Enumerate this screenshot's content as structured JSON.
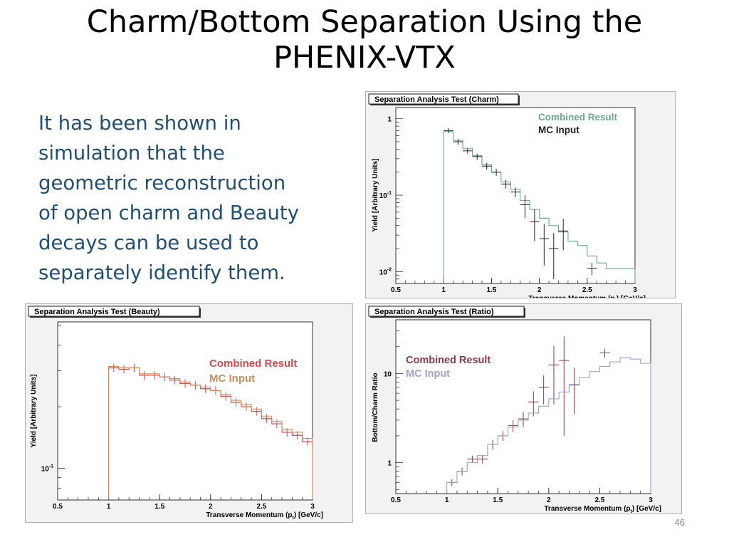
{
  "slide": {
    "title_lines": [
      "Charm/Bottom Separation Using the",
      "PHENIX-VTX"
    ],
    "bullet_lines": [
      "It has been shown in",
      "simulation that the",
      "geometric reconstruction",
      "of open charm and Beauty",
      "decays can be used to",
      "separately identify them."
    ],
    "slide_number": "46"
  },
  "chart_data": [
    {
      "id": "charm",
      "type": "line",
      "title": "Separation Analysis Test (Charm)",
      "xlabel": "Transverse Momentum (p",
      "xlabel_sub": "t",
      "xlabel_suffix": ") [GeV/c]",
      "ylabel": "Yield [Arbitrary Units]",
      "xlim": [
        0.5,
        3.0
      ],
      "ylim": [
        0.007,
        1.4
      ],
      "yscale": "log",
      "xticks": [
        0.5,
        1,
        1.5,
        2,
        2.5,
        3
      ],
      "xtick_labels": [
        "0.5",
        "1",
        "1.5",
        "2",
        "2.5",
        "3"
      ],
      "yticks": [
        {
          "value": 1,
          "base": "1",
          "exp": ""
        },
        {
          "value": 0.1,
          "base": "10",
          "exp": "-1"
        },
        {
          "value": 0.01,
          "base": "10",
          "exp": "-2"
        }
      ],
      "legend_position": "top-right",
      "series": [
        {
          "name": "Combined Result",
          "color": "#6aaa8a",
          "x": [
            1.05,
            1.15,
            1.25,
            1.35,
            1.45,
            1.55,
            1.65,
            1.75,
            1.85,
            1.95,
            2.05,
            2.15,
            2.25,
            2.35,
            2.45,
            2.55,
            2.65,
            2.75,
            2.85,
            2.95
          ],
          "y": [
            0.68,
            0.52,
            0.41,
            0.33,
            0.25,
            0.2,
            0.15,
            0.12,
            0.085,
            0.065,
            0.05,
            0.04,
            0.033,
            0.025,
            0.022,
            0.016,
            0.013,
            0.011,
            0.011,
            0.011
          ]
        },
        {
          "name": "MC Input",
          "color": "#222222",
          "x": [
            1.05,
            1.15,
            1.25,
            1.35,
            1.45,
            1.55,
            1.65,
            1.75,
            1.85,
            1.95,
            2.05,
            2.15,
            2.25,
            2.55
          ],
          "y": [
            0.7,
            0.5,
            0.38,
            0.32,
            0.24,
            0.2,
            0.14,
            0.11,
            0.075,
            0.045,
            0.027,
            0.02,
            0.034,
            0.011
          ],
          "err": [
            0.05,
            0.04,
            0.03,
            0.03,
            0.025,
            0.02,
            0.018,
            0.016,
            0.025,
            0.02,
            0.015,
            0.012,
            0.015,
            0.002
          ]
        }
      ]
    },
    {
      "id": "beauty",
      "type": "line",
      "title": "Separation Analysis Test (Beauty)",
      "xlabel": "Transverse Momentum (p",
      "xlabel_sub": "t",
      "xlabel_suffix": ") [GeV/c]",
      "ylabel": "Yield [Arbitrary Units]",
      "xlim": [
        0.5,
        3.0
      ],
      "ylim": [
        0.07,
        0.52
      ],
      "yscale": "log",
      "xticks": [
        0.5,
        1,
        1.5,
        2,
        2.5,
        3
      ],
      "xtick_labels": [
        "0.5",
        "1",
        "1.5",
        "2",
        "2.5",
        "3"
      ],
      "yticks": [
        {
          "value": 0.1,
          "base": "10",
          "exp": "-1"
        }
      ],
      "legend_position": "top-right",
      "series": [
        {
          "name": "Combined Result",
          "color": "#d94a4a",
          "x": [
            1.05,
            1.15,
            1.25,
            1.35,
            1.45,
            1.55,
            1.65,
            1.75,
            1.85,
            1.95,
            2.05,
            2.15,
            2.25,
            2.35,
            2.45,
            2.55,
            2.65,
            2.75,
            2.85,
            2.95
          ],
          "y": [
            0.31,
            0.305,
            0.31,
            0.285,
            0.285,
            0.28,
            0.27,
            0.26,
            0.255,
            0.245,
            0.24,
            0.225,
            0.21,
            0.2,
            0.19,
            0.175,
            0.165,
            0.15,
            0.145,
            0.135
          ]
        },
        {
          "name": "MC Input",
          "color": "#c89060",
          "x": [
            1.05,
            1.15,
            1.25,
            1.35,
            1.45,
            1.55,
            1.65,
            1.75,
            1.85,
            1.95,
            2.05,
            2.15,
            2.25,
            2.35,
            2.45,
            2.55,
            2.65,
            2.75,
            2.85,
            2.95
          ],
          "y": [
            0.315,
            0.31,
            0.31,
            0.29,
            0.29,
            0.28,
            0.275,
            0.265,
            0.255,
            0.25,
            0.24,
            0.23,
            0.215,
            0.205,
            0.195,
            0.18,
            0.17,
            0.155,
            0.15,
            0.14
          ]
        }
      ]
    },
    {
      "id": "ratio",
      "type": "line",
      "title": "Separation Analysis Test (Ratio)",
      "xlabel": "Transverse Momentum (p",
      "xlabel_sub": "t",
      "xlabel_suffix": ") [GeV/c]",
      "ylabel": "Bottom/Charm Ratio",
      "xlim": [
        0.5,
        3.0
      ],
      "ylim": [
        0.45,
        40
      ],
      "yscale": "log",
      "xticks": [
        0.5,
        1,
        1.5,
        2,
        2.5,
        3
      ],
      "xtick_labels": [
        "0.5",
        "1",
        "1.5",
        "2",
        "2.5",
        "3"
      ],
      "yticks": [
        {
          "value": 10,
          "base": "10",
          "exp": ""
        },
        {
          "value": 1,
          "base": "1",
          "exp": ""
        }
      ],
      "legend_position": "top-left",
      "series": [
        {
          "name": "Combined Result",
          "color": "#8a3a4a",
          "x": [
            1.05,
            1.15,
            1.25,
            1.35,
            1.45,
            1.55,
            1.65,
            1.75,
            1.85,
            1.95,
            2.05,
            2.15,
            2.25,
            2.55
          ],
          "y": [
            0.6,
            0.8,
            1.1,
            1.1,
            1.6,
            2.0,
            2.6,
            3.1,
            4.8,
            7.0,
            12.5,
            14.0,
            7.5,
            17.0
          ],
          "err": [
            0.05,
            0.08,
            0.1,
            0.12,
            0.2,
            0.25,
            0.4,
            0.6,
            1.5,
            2.5,
            8.0,
            12.0,
            4.0,
            2.0
          ]
        },
        {
          "name": "MC Input",
          "color": "#9f9fd2",
          "x": [
            1.05,
            1.15,
            1.25,
            1.35,
            1.45,
            1.55,
            1.65,
            1.75,
            1.85,
            1.95,
            2.05,
            2.15,
            2.25,
            2.35,
            2.45,
            2.55,
            2.65,
            2.75,
            2.85,
            2.95
          ],
          "y": [
            0.6,
            0.8,
            1.0,
            1.2,
            1.6,
            2.0,
            2.5,
            3.0,
            3.6,
            4.3,
            5.2,
            6.2,
            7.4,
            9.0,
            10.5,
            12.0,
            13.5,
            15.0,
            14.5,
            13.0
          ]
        }
      ]
    }
  ]
}
